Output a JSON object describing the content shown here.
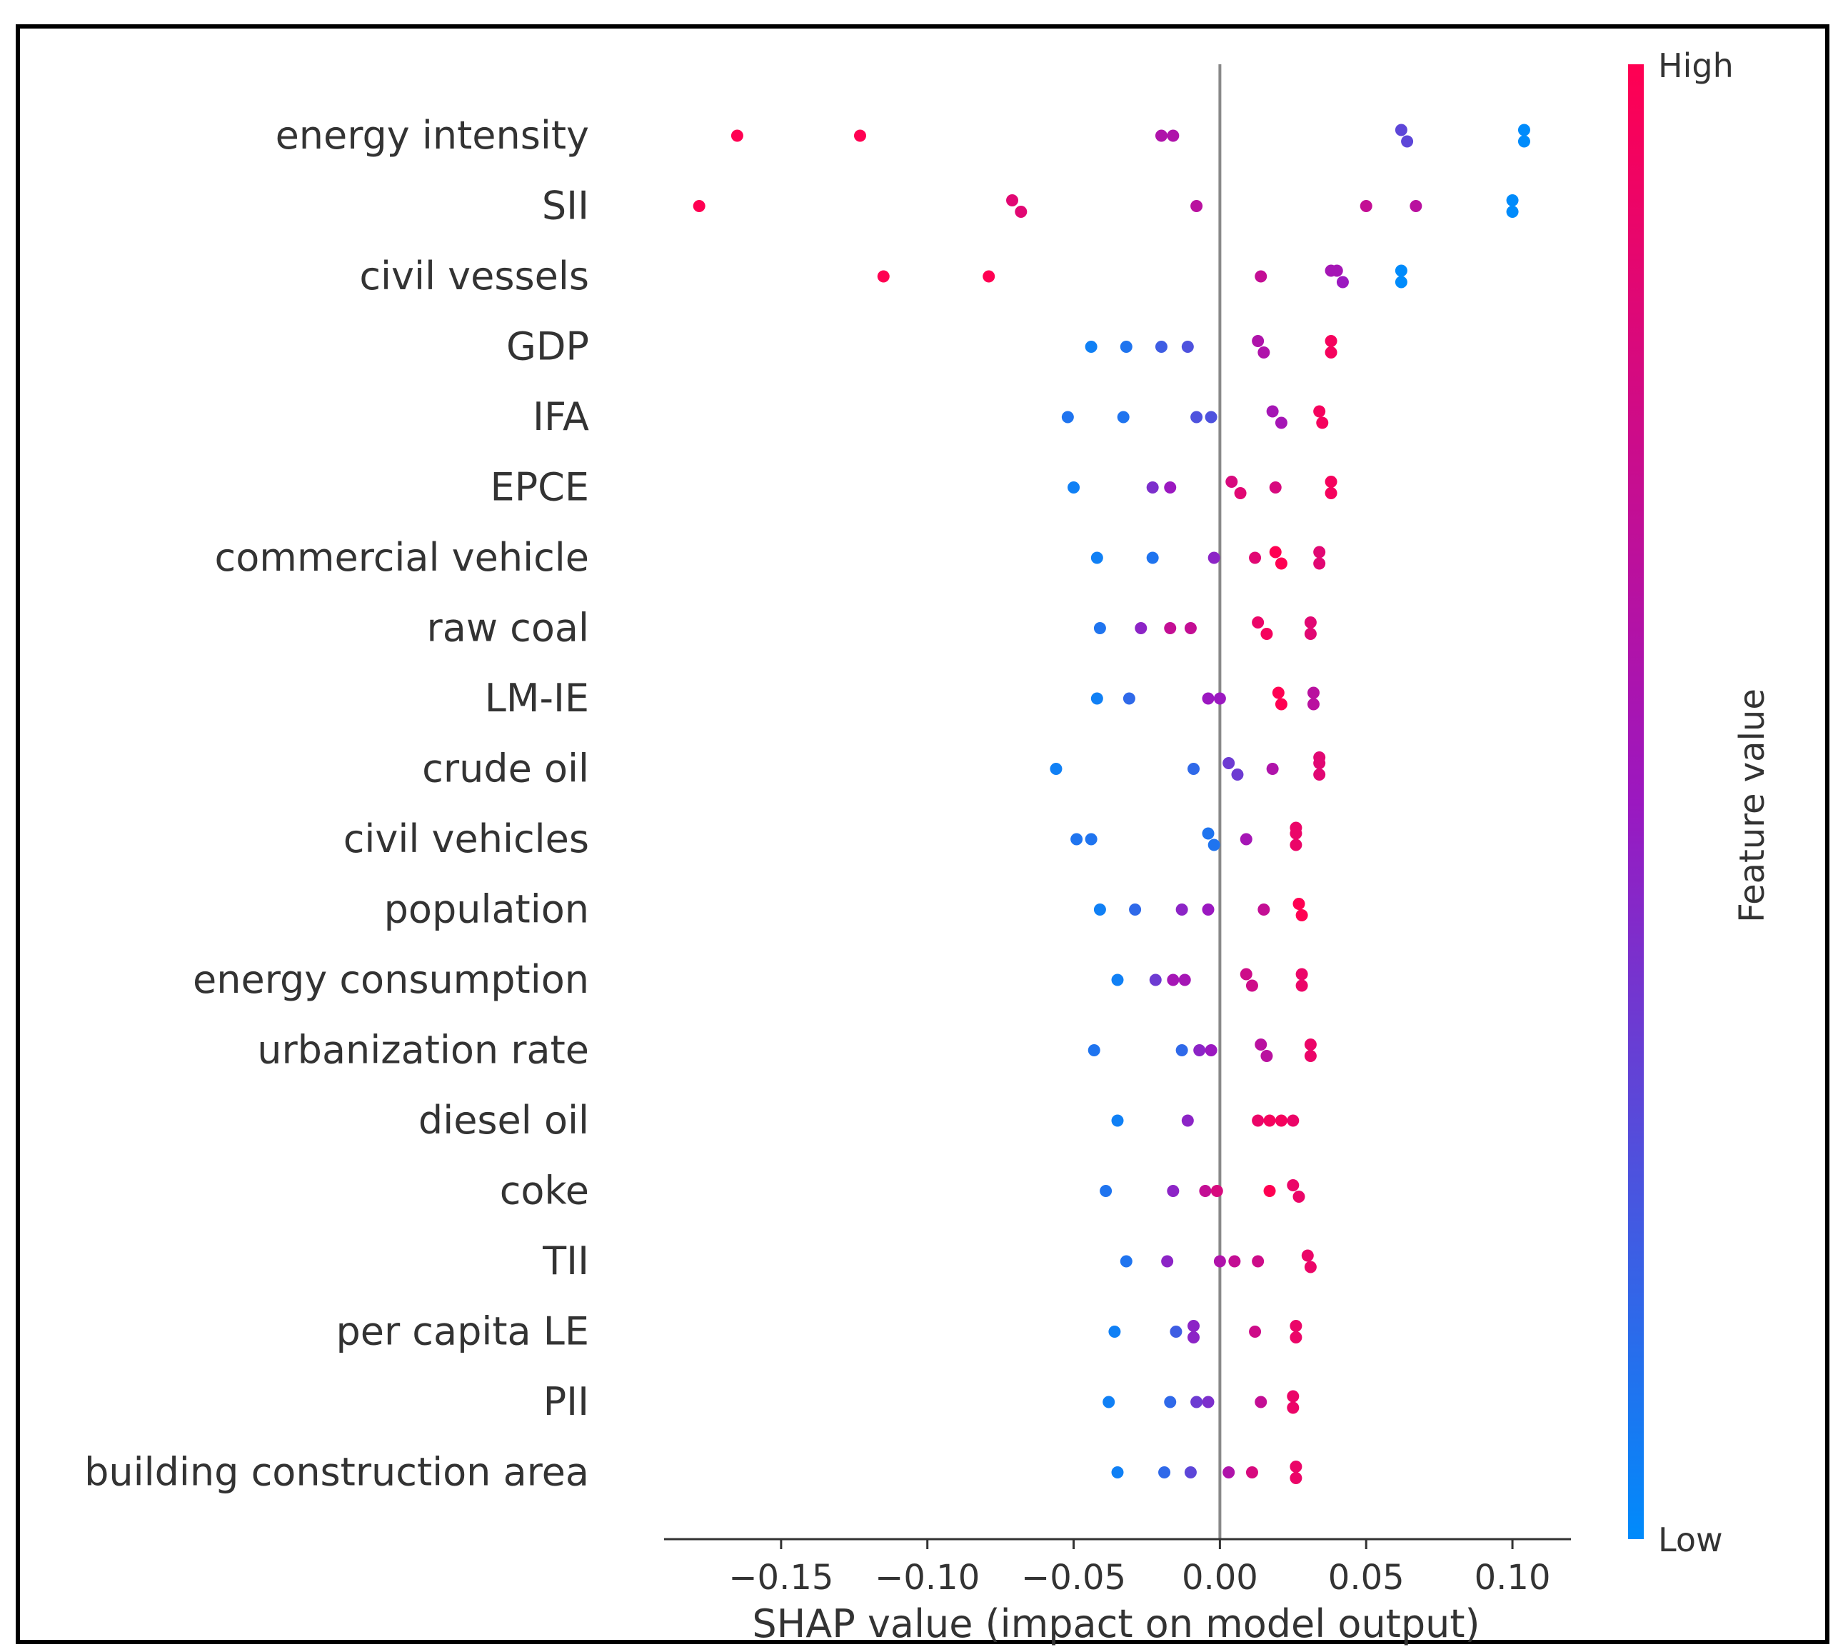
{
  "chart_data": {
    "type": "scatter",
    "subtype": "shap-beeswarm",
    "xlabel": "SHAP value (impact on model output)",
    "xlim": [
      -0.19,
      0.12
    ],
    "xticks": [
      -0.15,
      -0.1,
      -0.05,
      0.0,
      0.05,
      0.1
    ],
    "xtick_labels": [
      "−0.15",
      "−0.10",
      "−0.05",
      "0.00",
      "0.05",
      "0.10"
    ],
    "colorbar": {
      "label": "Feature value",
      "high_label": "High",
      "low_label": "Low",
      "low_color": "#008bfb",
      "high_color": "#ff0052",
      "mid_color": "#9b18c0"
    },
    "features": [
      {
        "name": "energy intensity",
        "points": [
          [
            -0.165,
            1
          ],
          [
            -0.123,
            1
          ],
          [
            -0.02,
            0.6
          ],
          [
            -0.016,
            0.6
          ],
          [
            0.062,
            0.3
          ],
          [
            0.064,
            0.3
          ],
          [
            0.104,
            0
          ],
          [
            0.104,
            0
          ]
        ]
      },
      {
        "name": "SII",
        "points": [
          [
            -0.178,
            1
          ],
          [
            -0.071,
            0.85
          ],
          [
            -0.068,
            0.85
          ],
          [
            -0.008,
            0.65
          ],
          [
            0.05,
            0.7
          ],
          [
            0.067,
            0.65
          ],
          [
            0.1,
            0
          ],
          [
            0.1,
            0
          ]
        ]
      },
      {
        "name": "civil vessels",
        "points": [
          [
            -0.115,
            1
          ],
          [
            -0.079,
            1
          ],
          [
            0.014,
            0.7
          ],
          [
            0.038,
            0.55
          ],
          [
            0.04,
            0.55
          ],
          [
            0.042,
            0.5
          ],
          [
            0.062,
            0
          ],
          [
            0.062,
            0
          ]
        ]
      },
      {
        "name": "GDP",
        "points": [
          [
            -0.044,
            0.05
          ],
          [
            -0.032,
            0.1
          ],
          [
            -0.02,
            0.2
          ],
          [
            -0.011,
            0.25
          ],
          [
            0.013,
            0.6
          ],
          [
            0.015,
            0.6
          ],
          [
            0.038,
            0.95
          ],
          [
            0.038,
            0.95
          ]
        ]
      },
      {
        "name": "IFA",
        "points": [
          [
            -0.052,
            0.1
          ],
          [
            -0.033,
            0.1
          ],
          [
            -0.008,
            0.25
          ],
          [
            -0.003,
            0.25
          ],
          [
            0.018,
            0.55
          ],
          [
            0.021,
            0.55
          ],
          [
            0.034,
            0.95
          ],
          [
            0.035,
            0.95
          ]
        ]
      },
      {
        "name": "EPCE",
        "points": [
          [
            -0.05,
            0.05
          ],
          [
            -0.023,
            0.4
          ],
          [
            -0.017,
            0.5
          ],
          [
            0.004,
            0.8
          ],
          [
            0.007,
            0.85
          ],
          [
            0.019,
            0.8
          ],
          [
            0.038,
            0.95
          ],
          [
            0.038,
            0.95
          ]
        ]
      },
      {
        "name": "commercial vehicle",
        "points": [
          [
            -0.042,
            0.05
          ],
          [
            -0.023,
            0.1
          ],
          [
            -0.002,
            0.45
          ],
          [
            0.012,
            0.85
          ],
          [
            0.019,
            1
          ],
          [
            0.021,
            1
          ],
          [
            0.034,
            0.85
          ],
          [
            0.034,
            0.85
          ]
        ]
      },
      {
        "name": "raw coal",
        "points": [
          [
            -0.041,
            0.1
          ],
          [
            -0.027,
            0.45
          ],
          [
            -0.017,
            0.7
          ],
          [
            -0.01,
            0.7
          ],
          [
            0.013,
            0.9
          ],
          [
            0.016,
            0.95
          ],
          [
            0.031,
            0.85
          ],
          [
            0.031,
            0.85
          ]
        ]
      },
      {
        "name": "LM-IE",
        "points": [
          [
            -0.042,
            0.05
          ],
          [
            -0.031,
            0.15
          ],
          [
            -0.004,
            0.5
          ],
          [
            0,
            0.5
          ],
          [
            0.02,
            1
          ],
          [
            0.021,
            1
          ],
          [
            0.032,
            0.65
          ],
          [
            0.032,
            0.65
          ]
        ]
      },
      {
        "name": "crude oil",
        "points": [
          [
            -0.056,
            0.05
          ],
          [
            -0.009,
            0.15
          ],
          [
            0.003,
            0.35
          ],
          [
            0.006,
            0.35
          ],
          [
            0.018,
            0.6
          ],
          [
            0.034,
            0.85
          ],
          [
            0.034,
            0.85
          ],
          [
            0.034,
            0.85
          ]
        ]
      },
      {
        "name": "civil vehicles",
        "points": [
          [
            -0.049,
            0.1
          ],
          [
            -0.044,
            0.1
          ],
          [
            -0.004,
            0.1
          ],
          [
            -0.002,
            0.1
          ],
          [
            0.009,
            0.55
          ],
          [
            0.026,
            0.9
          ],
          [
            0.026,
            0.9
          ],
          [
            0.026,
            0.9
          ]
        ]
      },
      {
        "name": "population",
        "points": [
          [
            -0.041,
            0.05
          ],
          [
            -0.029,
            0.15
          ],
          [
            -0.013,
            0.45
          ],
          [
            -0.004,
            0.5
          ],
          [
            0.015,
            0.7
          ],
          [
            0.027,
            1
          ],
          [
            0.028,
            1
          ]
        ]
      },
      {
        "name": "energy consumption",
        "points": [
          [
            -0.035,
            0.05
          ],
          [
            -0.022,
            0.35
          ],
          [
            -0.016,
            0.55
          ],
          [
            -0.012,
            0.55
          ],
          [
            0.009,
            0.75
          ],
          [
            0.011,
            0.75
          ],
          [
            0.028,
            0.9
          ],
          [
            0.028,
            0.9
          ]
        ]
      },
      {
        "name": "urbanization rate",
        "points": [
          [
            -0.043,
            0.1
          ],
          [
            -0.013,
            0.15
          ],
          [
            -0.007,
            0.45
          ],
          [
            -0.003,
            0.5
          ],
          [
            0.014,
            0.65
          ],
          [
            0.016,
            0.65
          ],
          [
            0.031,
            0.9
          ],
          [
            0.031,
            0.9
          ]
        ]
      },
      {
        "name": "diesel oil",
        "points": [
          [
            -0.035,
            0.05
          ],
          [
            -0.011,
            0.45
          ],
          [
            0.013,
            0.9
          ],
          [
            0.017,
            0.95
          ],
          [
            0.021,
            0.95
          ],
          [
            0.025,
            0.9
          ]
        ]
      },
      {
        "name": "coke",
        "points": [
          [
            -0.039,
            0.1
          ],
          [
            -0.016,
            0.45
          ],
          [
            -0.005,
            0.7
          ],
          [
            -0.001,
            0.8
          ],
          [
            0.017,
            1
          ],
          [
            0.025,
            0.9
          ],
          [
            0.027,
            0.9
          ]
        ]
      },
      {
        "name": "TII",
        "points": [
          [
            -0.032,
            0.1
          ],
          [
            -0.018,
            0.45
          ],
          [
            0,
            0.6
          ],
          [
            0.005,
            0.7
          ],
          [
            0.013,
            0.75
          ],
          [
            0.03,
            0.9
          ],
          [
            0.031,
            0.9
          ]
        ]
      },
      {
        "name": "per capita LE",
        "points": [
          [
            -0.036,
            0.05
          ],
          [
            -0.015,
            0.2
          ],
          [
            -0.009,
            0.45
          ],
          [
            -0.009,
            0.45
          ],
          [
            0.012,
            0.75
          ],
          [
            0.026,
            0.9
          ],
          [
            0.026,
            0.9
          ]
        ]
      },
      {
        "name": "PII",
        "points": [
          [
            -0.038,
            0.05
          ],
          [
            -0.017,
            0.15
          ],
          [
            -0.008,
            0.35
          ],
          [
            -0.004,
            0.4
          ],
          [
            0.014,
            0.7
          ],
          [
            0.025,
            0.9
          ],
          [
            0.025,
            0.9
          ]
        ]
      },
      {
        "name": "building construction area",
        "points": [
          [
            -0.035,
            0.05
          ],
          [
            -0.019,
            0.15
          ],
          [
            -0.01,
            0.3
          ],
          [
            0.003,
            0.6
          ],
          [
            0.011,
            0.8
          ],
          [
            0.026,
            0.9
          ],
          [
            0.026,
            0.9
          ]
        ]
      }
    ]
  }
}
